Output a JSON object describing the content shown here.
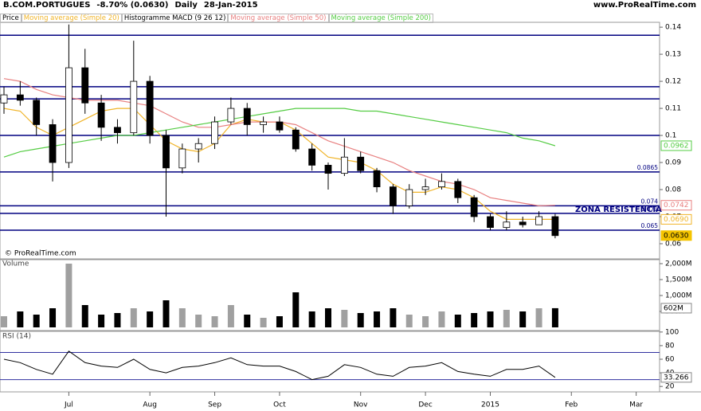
{
  "chart_data": [
    {
      "type": "candlestick",
      "title": "B.COM.PORTUGUES",
      "change": "-8.70% (0.0630)",
      "period": "Daily",
      "date": "28-Jan-2015",
      "source": "www.ProRealTime.com",
      "copyright": "© ProRealTime.com",
      "name": "Price",
      "macd_legend": "Histogramme MACD (9 26 12)",
      "annotation": "ZONA RESISTENCIA",
      "categories": [
        null,
        null,
        null,
        null,
        "Jul",
        null,
        null,
        null,
        null,
        "Aug",
        null,
        null,
        null,
        "Sep",
        null,
        null,
        null,
        "Oct",
        null,
        null,
        null,
        null,
        "Nov",
        null,
        null,
        null,
        "Dec",
        null,
        null,
        null,
        "2015",
        null,
        null,
        null,
        null,
        "Feb",
        null,
        null,
        null,
        "Mar"
      ],
      "open": [
        0.112,
        0.115,
        0.113,
        0.104,
        0.09,
        0.125,
        0.112,
        0.103,
        0.101,
        0.12,
        0.1,
        0.088,
        0.095,
        0.097,
        0.105,
        0.11,
        0.104,
        0.105,
        0.102,
        0.095,
        0.089,
        0.086,
        0.092,
        0.087,
        0.081,
        0.074,
        0.08,
        0.081,
        0.083,
        0.077,
        0.07,
        0.066,
        0.068,
        0.067,
        0.07,
        null,
        null,
        null,
        null,
        null
      ],
      "high": [
        0.118,
        0.12,
        0.114,
        0.106,
        0.141,
        0.132,
        0.115,
        0.106,
        0.135,
        0.122,
        0.102,
        0.097,
        0.099,
        0.107,
        0.114,
        0.112,
        0.107,
        0.107,
        0.103,
        0.097,
        0.09,
        0.099,
        0.094,
        0.088,
        0.082,
        0.082,
        0.084,
        0.086,
        0.084,
        0.078,
        0.071,
        0.072,
        0.07,
        0.072,
        0.071,
        null,
        null,
        null,
        null,
        null
      ],
      "low": [
        0.108,
        0.111,
        0.1,
        0.083,
        0.088,
        0.108,
        0.098,
        0.097,
        0.1,
        0.097,
        0.07,
        0.086,
        0.09,
        0.095,
        0.104,
        0.1,
        0.101,
        0.101,
        0.094,
        0.087,
        0.08,
        0.085,
        0.086,
        0.079,
        0.071,
        0.073,
        0.078,
        0.08,
        0.075,
        0.068,
        0.065,
        0.065,
        0.066,
        0.067,
        0.062,
        null,
        null,
        null,
        null,
        null
      ],
      "close": [
        0.115,
        0.113,
        0.104,
        0.09,
        0.125,
        0.112,
        0.103,
        0.101,
        0.12,
        0.1,
        0.088,
        0.095,
        0.097,
        0.105,
        0.11,
        0.104,
        0.105,
        0.102,
        0.095,
        0.089,
        0.086,
        0.092,
        0.087,
        0.081,
        0.074,
        0.08,
        0.081,
        0.083,
        0.077,
        0.07,
        0.066,
        0.068,
        0.067,
        0.07,
        0.063,
        null,
        null,
        null,
        null,
        null
      ],
      "up_color": "#ffffff",
      "down_color": "#000000",
      "series": [
        {
          "name": "Moving average (Simple 20)",
          "color": "#f0b429",
          "values": [
            0.11,
            0.109,
            0.103,
            0.1,
            0.103,
            0.106,
            0.109,
            0.11,
            0.11,
            0.104,
            0.098,
            0.095,
            0.094,
            0.097,
            0.104,
            0.106,
            0.105,
            0.105,
            0.102,
            0.097,
            0.092,
            0.091,
            0.09,
            0.087,
            0.082,
            0.079,
            0.079,
            0.081,
            0.08,
            0.077,
            0.072,
            0.069,
            0.069,
            0.069,
            0.069,
            null,
            null,
            null,
            null,
            null
          ]
        },
        {
          "name": "Moving average (Simple 50)",
          "color": "#e88080",
          "values": [
            0.121,
            0.12,
            0.117,
            0.115,
            0.114,
            0.113,
            0.113,
            0.113,
            0.112,
            0.111,
            0.108,
            0.105,
            0.103,
            0.103,
            0.104,
            0.105,
            0.105,
            0.105,
            0.104,
            0.101,
            0.098,
            0.096,
            0.094,
            0.092,
            0.09,
            0.087,
            0.085,
            0.083,
            0.082,
            0.08,
            0.077,
            0.076,
            0.075,
            0.074,
            0.0742,
            null,
            null,
            null,
            null,
            null
          ]
        },
        {
          "name": "Moving average (Simple 200)",
          "color": "#55cc44",
          "values": [
            0.092,
            0.094,
            0.095,
            0.096,
            0.097,
            0.098,
            0.099,
            0.1,
            0.1,
            0.101,
            0.102,
            0.103,
            0.104,
            0.105,
            0.106,
            0.107,
            0.108,
            0.109,
            0.11,
            0.11,
            0.11,
            0.11,
            0.109,
            0.109,
            0.108,
            0.107,
            0.106,
            0.105,
            0.104,
            0.103,
            0.102,
            0.101,
            0.099,
            0.098,
            0.0962,
            null,
            null,
            null,
            null,
            null
          ]
        }
      ],
      "ylim": [
        0.0544,
        0.1418
      ],
      "yticks": [
        0.06,
        0.07,
        0.08,
        0.09,
        0.1,
        0.11,
        0.12,
        0.13,
        0.14
      ],
      "level_color": "#000080",
      "levels": [
        0.137,
        0.118,
        0.1135,
        0.1,
        {
          "value": 0.0865,
          "label": "0.0865"
        },
        {
          "value": 0.074,
          "label": "0.074"
        },
        {
          "value": 0.0712,
          "label": "0.071"
        },
        {
          "value": 0.065,
          "label": "0.065"
        }
      ],
      "markers": [
        {
          "value": 0.0962,
          "label": "0.0962",
          "color": "#55cc44"
        },
        {
          "value": 0.0742,
          "label": "0.0742",
          "color": "#e88080"
        },
        {
          "value": 0.069,
          "label": "0.0690",
          "color": "#f0b429"
        },
        {
          "value": 0.063,
          "label": "0.0630",
          "color": "#f5c400"
        }
      ]
    },
    {
      "type": "bar",
      "title": "Volume",
      "up_color": "#a0a0a0",
      "down_color": "#000000",
      "values": [
        350000000,
        500000000,
        400000000,
        600000000,
        2000000000,
        700000000,
        400000000,
        450000000,
        600000000,
        500000000,
        850000000,
        600000000,
        400000000,
        350000000,
        700000000,
        400000000,
        300000000,
        350000000,
        1100000000,
        500000000,
        600000000,
        550000000,
        450000000,
        500000000,
        600000000,
        400000000,
        350000000,
        500000000,
        400000000,
        450000000,
        500000000,
        550000000,
        500000000,
        600000000,
        602000000,
        null,
        null,
        null,
        null,
        null
      ],
      "ylim": [
        0,
        2125000000
      ],
      "yticks": [
        {
          "value": 500000000,
          "label": "500M"
        },
        {
          "value": 1000000000,
          "label": "1,000M"
        },
        {
          "value": 1500000000,
          "label": "1,500M"
        },
        {
          "value": 2000000000,
          "label": "2,000M"
        }
      ],
      "marker": {
        "value": 602000000,
        "label": "602M"
      }
    },
    {
      "type": "line",
      "title": "RSI (14)",
      "color": "#000000",
      "level_color": "#3030a0",
      "values": [
        60,
        55,
        45,
        38,
        72,
        55,
        50,
        48,
        60,
        45,
        40,
        48,
        50,
        55,
        62,
        52,
        50,
        50,
        42,
        30,
        35,
        52,
        48,
        38,
        35,
        48,
        50,
        55,
        42,
        38,
        35,
        45,
        45,
        50,
        33.266,
        null,
        null,
        null,
        null,
        null
      ],
      "ylim": [
        12,
        101
      ],
      "yticks": [
        20,
        40,
        60,
        80,
        100
      ],
      "levels": [
        30,
        70
      ],
      "marker": {
        "value": 33.266,
        "label": "33.266"
      }
    }
  ]
}
